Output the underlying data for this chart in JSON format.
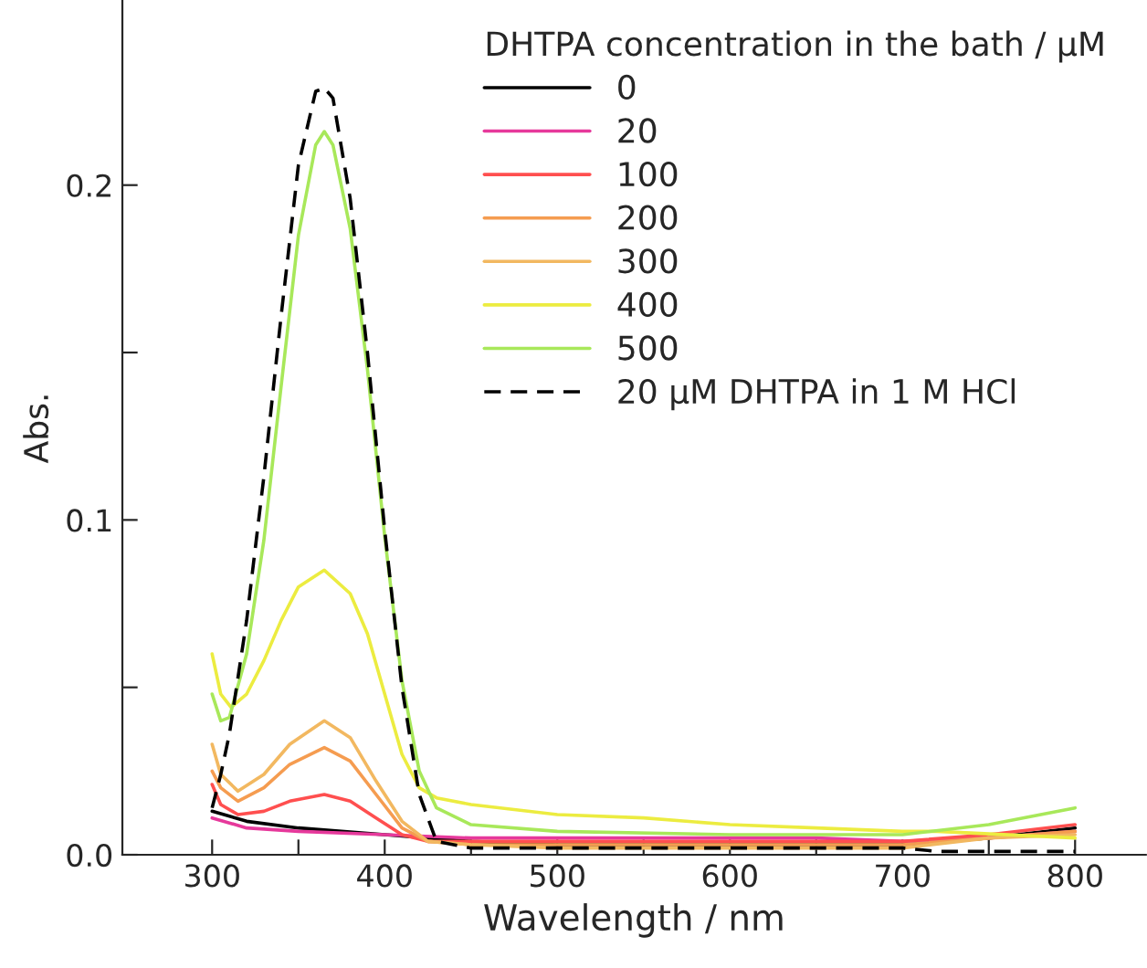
{
  "chart_data": {
    "type": "line",
    "xlabel": "Wavelength / nm",
    "ylabel": "Abs.",
    "legend_title": "DHTPA concentration in the bath / μM",
    "xlim": [
      248,
      841
    ],
    "ylim": [
      0,
      0.255
    ],
    "xticks": [
      300,
      {
        "value": 350,
        "label": null
      },
      400,
      {
        "value": 450,
        "label": null
      },
      500,
      {
        "value": 550,
        "label": null
      },
      600,
      {
        "value": 650,
        "label": null
      },
      700,
      {
        "value": 750,
        "label": null
      },
      800
    ],
    "yticks": [
      {
        "value": 0,
        "label": "0.0"
      },
      {
        "value": 0.05,
        "label": null
      },
      {
        "value": 0.1,
        "label": "0.1"
      },
      {
        "value": 0.15,
        "label": null
      },
      {
        "value": 0.2,
        "label": "0.2"
      }
    ],
    "grid": false,
    "legend": "top right",
    "marker": "none",
    "series": [
      {
        "name": "0",
        "color": "#000000",
        "line_style": "solid",
        "x": [
          300,
          320,
          350,
          400,
          450,
          500,
          600,
          700,
          750,
          800
        ],
        "values": [
          0.013,
          0.01,
          0.008,
          0.006,
          0.004,
          0.003,
          0.003,
          0.003,
          0.005,
          0.008
        ]
      },
      {
        "name": "20",
        "color": "#e6399b",
        "line_style": "solid",
        "x": [
          300,
          320,
          350,
          400,
          450,
          500,
          600,
          650,
          700,
          750,
          800
        ],
        "values": [
          0.011,
          0.008,
          0.007,
          0.006,
          0.005,
          0.005,
          0.005,
          0.005,
          0.004,
          0.005,
          0.007
        ]
      },
      {
        "name": "100",
        "color": "#ff4f4f",
        "line_style": "solid",
        "x": [
          300,
          305,
          315,
          330,
          345,
          365,
          380,
          395,
          410,
          425,
          450,
          500,
          600,
          700,
          750,
          800
        ],
        "values": [
          0.021,
          0.015,
          0.012,
          0.013,
          0.016,
          0.018,
          0.016,
          0.011,
          0.006,
          0.004,
          0.004,
          0.004,
          0.004,
          0.004,
          0.006,
          0.009
        ]
      },
      {
        "name": "200",
        "color": "#f59c50",
        "line_style": "solid",
        "x": [
          300,
          305,
          315,
          330,
          345,
          365,
          380,
          395,
          410,
          425,
          450,
          500,
          600,
          700,
          750,
          800
        ],
        "values": [
          0.025,
          0.02,
          0.016,
          0.02,
          0.027,
          0.032,
          0.028,
          0.018,
          0.008,
          0.004,
          0.003,
          0.003,
          0.003,
          0.003,
          0.005,
          0.007
        ]
      },
      {
        "name": "300",
        "color": "#f2b860",
        "line_style": "solid",
        "x": [
          300,
          305,
          315,
          330,
          345,
          365,
          380,
          395,
          410,
          425,
          450,
          500,
          600,
          700,
          750,
          800
        ],
        "values": [
          0.033,
          0.024,
          0.019,
          0.024,
          0.033,
          0.04,
          0.035,
          0.022,
          0.01,
          0.004,
          0.003,
          0.002,
          0.002,
          0.002,
          0.005,
          0.006
        ]
      },
      {
        "name": "400",
        "color": "#ecec40",
        "line_style": "solid",
        "x": [
          300,
          305,
          311,
          320,
          330,
          340,
          350,
          365,
          380,
          390,
          400,
          410,
          420,
          430,
          450,
          500,
          550,
          600,
          650,
          700,
          720,
          800
        ],
        "values": [
          0.06,
          0.048,
          0.044,
          0.048,
          0.058,
          0.07,
          0.08,
          0.085,
          0.078,
          0.066,
          0.048,
          0.03,
          0.02,
          0.017,
          0.015,
          0.012,
          0.011,
          0.009,
          0.008,
          0.007,
          0.007,
          0.005
        ]
      },
      {
        "name": "500",
        "color": "#a8e85a",
        "line_style": "solid",
        "x": [
          300,
          305,
          310,
          320,
          330,
          340,
          350,
          360,
          365,
          370,
          380,
          390,
          400,
          410,
          420,
          430,
          450,
          500,
          600,
          700,
          750,
          800
        ],
        "values": [
          0.048,
          0.04,
          0.041,
          0.06,
          0.094,
          0.14,
          0.185,
          0.212,
          0.216,
          0.212,
          0.187,
          0.145,
          0.095,
          0.052,
          0.025,
          0.014,
          0.009,
          0.007,
          0.006,
          0.006,
          0.009,
          0.014
        ]
      },
      {
        "name": "20 μM DHTPA in 1 M HCl",
        "color": "#000000",
        "line_style": "dashed",
        "x": [
          300,
          305,
          310,
          320,
          330,
          340,
          350,
          360,
          365,
          370,
          380,
          390,
          400,
          410,
          420,
          430,
          450,
          500,
          600,
          700,
          720,
          800
        ],
        "values": [
          0.014,
          0.024,
          0.036,
          0.07,
          0.113,
          0.161,
          0.206,
          0.228,
          0.229,
          0.226,
          0.196,
          0.15,
          0.097,
          0.05,
          0.018,
          0.004,
          0.002,
          0.002,
          0.002,
          0.002,
          0.001,
          0.001
        ]
      }
    ]
  }
}
